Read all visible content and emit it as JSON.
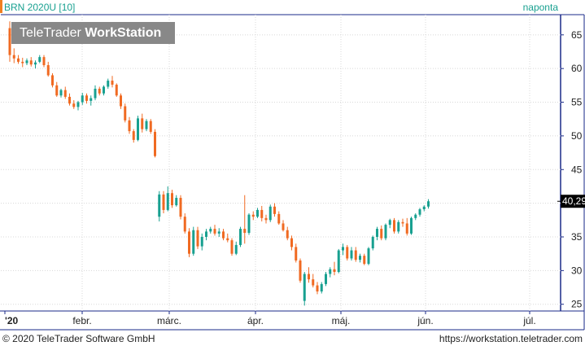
{
  "header": {
    "symbol": "BRN 2020U [10]",
    "period": "naponta"
  },
  "watermark": {
    "brand": "TeleTrader",
    "product": "WorkStation"
  },
  "footer": {
    "copyright": "© 2020 TeleTrader Software GmbH",
    "url": "https://workstation.teletrader.com"
  },
  "colors": {
    "up": "#18a090",
    "down": "#f06a22",
    "axis": "#1a2a88",
    "grid": "#d8d8d8",
    "accent": "#18a090"
  },
  "chart_data": {
    "type": "candlestick",
    "title": "BRN 2020U [10]",
    "ylim": [
      24,
      68
    ],
    "ytick_values": [
      25,
      30,
      35,
      40,
      45,
      50,
      55,
      60,
      65
    ],
    "ytick_labels": [
      "25",
      "30",
      "35",
      "40",
      "45",
      "50",
      "55",
      "60",
      "65"
    ],
    "last_price_label": "40,29",
    "last_price": 40.29,
    "x_labels": [
      "'20",
      "febr.",
      "márc.",
      "ápr.",
      "máj.",
      "jún.",
      "júl."
    ],
    "grid": true,
    "series": [
      {
        "values": [
          [
            66,
            67,
            61,
            62
          ],
          [
            62,
            63,
            60.8,
            61.5
          ],
          [
            61.5,
            62,
            60.7,
            61
          ],
          [
            61,
            61.6,
            60.2,
            60.8
          ],
          [
            60.8,
            61.5,
            60.5,
            61.2
          ],
          [
            61.2,
            61.7,
            60.3,
            60.6
          ],
          [
            60.6,
            61.2,
            60,
            60.9
          ],
          [
            61,
            62,
            60.8,
            61.7
          ],
          [
            61.7,
            62,
            60.2,
            60.5
          ],
          [
            60.5,
            61,
            58.8,
            59
          ],
          [
            59,
            59.3,
            57.2,
            57.5
          ],
          [
            57.5,
            58,
            55.8,
            56
          ],
          [
            56,
            57,
            55.7,
            56.8
          ],
          [
            56.8,
            57.3,
            55.5,
            55.8
          ],
          [
            55.8,
            56.3,
            54.5,
            54.8
          ],
          [
            54.8,
            55.3,
            54,
            54.3
          ],
          [
            54.3,
            55.2,
            53.8,
            55
          ],
          [
            55,
            56.4,
            54.6,
            56
          ],
          [
            56,
            56.3,
            54.8,
            55.2
          ],
          [
            55.2,
            56,
            54.5,
            55.6
          ],
          [
            55.6,
            57.5,
            55.3,
            57
          ],
          [
            57,
            57.3,
            56,
            56.3
          ],
          [
            56.3,
            57.5,
            56,
            57.3
          ],
          [
            57.3,
            58.5,
            57,
            58.2
          ],
          [
            58.2,
            58.9,
            57.2,
            57.6
          ],
          [
            57.6,
            57.8,
            55.8,
            56
          ],
          [
            56,
            56.3,
            54,
            54.4
          ],
          [
            54.4,
            54.8,
            52,
            52.3
          ],
          [
            52.3,
            52.8,
            50.3,
            50.7
          ],
          [
            50.7,
            51,
            49,
            49.4
          ],
          [
            49.4,
            53,
            49.2,
            52.6
          ],
          [
            52.6,
            53.3,
            50.5,
            51
          ],
          [
            51,
            52.5,
            50.7,
            52.2
          ],
          [
            52.2,
            52.5,
            50.3,
            50.6
          ],
          [
            50.6,
            51,
            46.8,
            47
          ],
          [
            38,
            41.8,
            37.3,
            41.3
          ],
          [
            41.3,
            41.8,
            38.5,
            39
          ],
          [
            39,
            42.5,
            38.8,
            41.5
          ],
          [
            41.5,
            42,
            39.3,
            39.7
          ],
          [
            39.7,
            41.2,
            39.5,
            40.8
          ],
          [
            40.8,
            41.2,
            37.6,
            38
          ],
          [
            38,
            38.5,
            35.5,
            35.8
          ],
          [
            35.8,
            36.3,
            32,
            32.5
          ],
          [
            32.5,
            36.5,
            32.2,
            36
          ],
          [
            36,
            36.5,
            33.2,
            33.6
          ],
          [
            33.6,
            35.5,
            33,
            35
          ],
          [
            35,
            36.2,
            34.5,
            35.8
          ],
          [
            35.8,
            36.5,
            35.5,
            36.2
          ],
          [
            36.2,
            36.8,
            35.2,
            35.5
          ],
          [
            35.5,
            36.3,
            35,
            35.8
          ],
          [
            35.8,
            36.2,
            34.5,
            34.8
          ],
          [
            34.8,
            35.5,
            34.2,
            34.5
          ],
          [
            34.5,
            34.8,
            32.2,
            32.5
          ],
          [
            32.5,
            34.3,
            32.3,
            33.8
          ],
          [
            33.8,
            36.5,
            33.5,
            36.2
          ],
          [
            36.2,
            41.2,
            34,
            35.6
          ],
          [
            35.6,
            38.5,
            35.3,
            38.3
          ],
          [
            38.3,
            38.8,
            37.5,
            38
          ],
          [
            38,
            39.3,
            37.8,
            39
          ],
          [
            39,
            39.6,
            37.3,
            37.8
          ],
          [
            37.8,
            38.3,
            37,
            37.5
          ],
          [
            37.5,
            39.8,
            37.2,
            39.5
          ],
          [
            39.5,
            40,
            38,
            38.4
          ],
          [
            38.4,
            38.8,
            36.8,
            37
          ],
          [
            37,
            37.5,
            35.8,
            36
          ],
          [
            36,
            36.5,
            34.5,
            34.8
          ],
          [
            34.8,
            35.2,
            33,
            33.5
          ],
          [
            33.5,
            34,
            31.2,
            31.5
          ],
          [
            31.5,
            31.8,
            28.2,
            28.5
          ],
          [
            25.5,
            29.8,
            24.8,
            29.5
          ],
          [
            29.5,
            30.5,
            28.2,
            28.7
          ],
          [
            28.7,
            29.5,
            27.5,
            27.8
          ],
          [
            27.8,
            28.3,
            26.5,
            26.9
          ],
          [
            26.9,
            28.3,
            26.6,
            28
          ],
          [
            28,
            29.8,
            27.7,
            29.5
          ],
          [
            29.5,
            30.5,
            29,
            30.2
          ],
          [
            30.2,
            31.3,
            29.3,
            29.8
          ],
          [
            29.8,
            33.2,
            29.6,
            33
          ],
          [
            33,
            34,
            32.3,
            33.5
          ],
          [
            33.5,
            33.8,
            31.5,
            31.8
          ],
          [
            31.8,
            33.5,
            31.5,
            33
          ],
          [
            33,
            33.5,
            31.3,
            31.6
          ],
          [
            31.6,
            32.5,
            31.2,
            32.2
          ],
          [
            32.2,
            32.5,
            30.8,
            31
          ],
          [
            31,
            33.5,
            30.8,
            33.3
          ],
          [
            33.3,
            35.2,
            33,
            35
          ],
          [
            35,
            36.5,
            34.5,
            36.2
          ],
          [
            36.2,
            36.7,
            34.5,
            34.8
          ],
          [
            34.8,
            37,
            34.5,
            36.8
          ],
          [
            36.8,
            37.7,
            36.3,
            37.5
          ],
          [
            37.5,
            37.8,
            35.5,
            35.8
          ],
          [
            35.8,
            37.5,
            35.5,
            37.2
          ],
          [
            37.2,
            37.7,
            36.5,
            37
          ],
          [
            37,
            37.8,
            35.2,
            35.5
          ],
          [
            35.5,
            38,
            35.3,
            37.8
          ],
          [
            37.8,
            38.5,
            37.5,
            38.3
          ],
          [
            38.3,
            39.3,
            38,
            39.1
          ],
          [
            39.1,
            39.7,
            38.8,
            39.5
          ],
          [
            39.5,
            40.6,
            39.2,
            40.29
          ]
        ]
      }
    ]
  }
}
